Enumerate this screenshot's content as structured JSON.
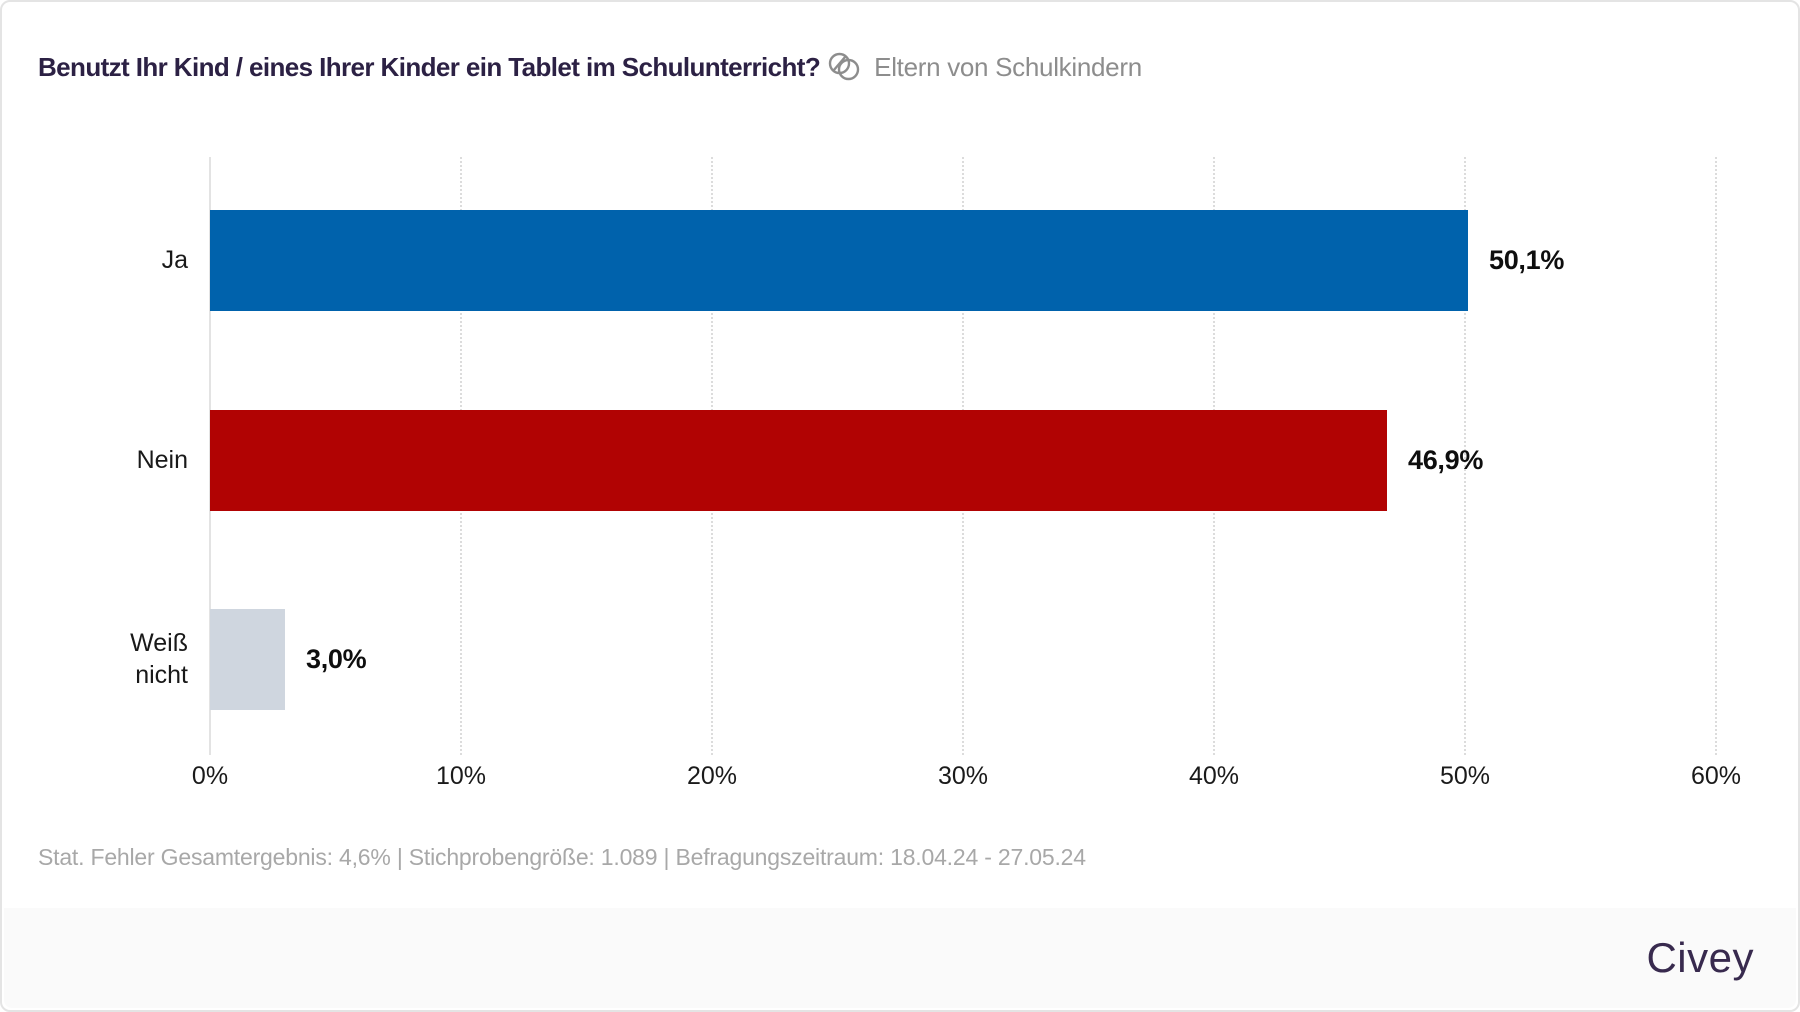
{
  "header": {
    "title": "Benutzt Ihr Kind / eines Ihrer Kinder ein Tablet im Schulunterricht?",
    "audience_label": "Eltern von Schulkindern"
  },
  "chart_data": {
    "type": "bar",
    "orientation": "horizontal",
    "title": "Benutzt Ihr Kind / eines Ihrer Kinder ein Tablet im Schulunterricht?",
    "audience": "Eltern von Schulkindern",
    "categories": [
      "Ja",
      "Nein",
      "Weiß nicht"
    ],
    "categories_display": [
      "Ja",
      "Nein",
      "Weiß\nnicht"
    ],
    "values": [
      50.1,
      46.9,
      3.0
    ],
    "value_labels": [
      "50,1%",
      "46,9%",
      "3,0%"
    ],
    "bar_colors": [
      "#0062AC",
      "#B10303",
      "#CFD6DF"
    ],
    "xlim": [
      0,
      60
    ],
    "x_ticks": [
      {
        "value": 0,
        "label": "0%"
      },
      {
        "value": 10,
        "label": "10%"
      },
      {
        "value": 20,
        "label": "20%"
      },
      {
        "value": 30,
        "label": "30%"
      },
      {
        "value": 40,
        "label": "40%"
      },
      {
        "value": 50,
        "label": "50%"
      },
      {
        "value": 60,
        "label": "60%"
      }
    ],
    "grid": "vertical dotted gridlines every 10%, solid line at 0%",
    "legend": "none"
  },
  "footer": {
    "stats_note": "Stat. Fehler Gesamtergebnis: 4,6% | Stichprobengröße: 1.089 | Befragungszeitraum: 18.04.24 - 27.05.24",
    "brand": "Civey"
  },
  "colors": {
    "bar_yes": "#0062AC",
    "bar_no": "#B10303",
    "bar_dontknow": "#CFD6DF",
    "title_text": "#2C2144",
    "audience_text": "#8D8D8D",
    "footer_text": "#A8A8A8",
    "brand_text": "#382A4E",
    "bottom_band": "#FAFAFA"
  }
}
